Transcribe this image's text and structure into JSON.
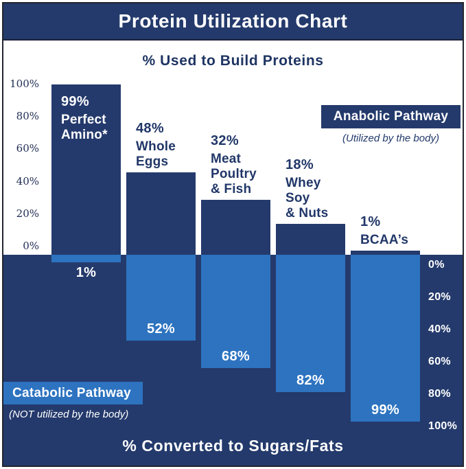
{
  "chart_data": {
    "type": "bar",
    "title": "Protein Utilization Chart",
    "top_axis_title": "% Used to Build Proteins",
    "bottom_axis_title": "% Converted to Sugars/Fats",
    "categories": [
      "Perfect Amino*",
      "Whole Eggs",
      "Meat Poultry & Fish",
      "Whey Soy & Nuts",
      "BCAA’s"
    ],
    "series": [
      {
        "name": "Anabolic Pathway",
        "description": "(Utilized by the body)",
        "direction": "up",
        "unit": "%",
        "values": [
          99,
          48,
          32,
          18,
          1
        ]
      },
      {
        "name": "Catabolic Pathway",
        "description": "(NOT utilized by the body)",
        "direction": "down",
        "unit": "%",
        "values": [
          1,
          52,
          68,
          82,
          99
        ]
      }
    ],
    "bars": [
      {
        "category_lines": [
          "Perfect",
          "Amino*"
        ],
        "anabolic": 99,
        "anabolic_label": "99%",
        "catabolic": 1,
        "catabolic_label": "1%",
        "category_label_placement": "inside-bar"
      },
      {
        "category_lines": [
          "Whole",
          "Eggs"
        ],
        "anabolic": 48,
        "anabolic_label": "48%",
        "catabolic": 52,
        "catabolic_label": "52%",
        "category_label_placement": "above-bar"
      },
      {
        "category_lines": [
          "Meat",
          "Poultry",
          "& Fish"
        ],
        "anabolic": 32,
        "anabolic_label": "32%",
        "catabolic": 68,
        "catabolic_label": "68%",
        "category_label_placement": "above-bar"
      },
      {
        "category_lines": [
          "Whey",
          "Soy",
          "& Nuts"
        ],
        "anabolic": 18,
        "anabolic_label": "18%",
        "catabolic": 82,
        "catabolic_label": "82%",
        "category_label_placement": "above-bar"
      },
      {
        "category_lines": [
          "BCAA’s"
        ],
        "anabolic": 1,
        "anabolic_label": "1%",
        "catabolic": 99,
        "catabolic_label": "99%",
        "category_label_placement": "above-bar"
      }
    ],
    "left_axis_tick_labels": [
      "100%",
      "80%",
      "60%",
      "40%",
      "20%",
      "0%"
    ],
    "right_axis_tick_labels": [
      "0%",
      "20%",
      "40%",
      "60%",
      "80%",
      "100%"
    ],
    "ylim": [
      0,
      100
    ],
    "legend_position": "anabolic top-right, catabolic bottom-left",
    "colors": {
      "navy": "#243A6C",
      "light_blue": "#2D73C0",
      "axis_text_navy": "#1D2B52",
      "label_text_navy": "#213768",
      "white": "#FFFFFF"
    }
  }
}
